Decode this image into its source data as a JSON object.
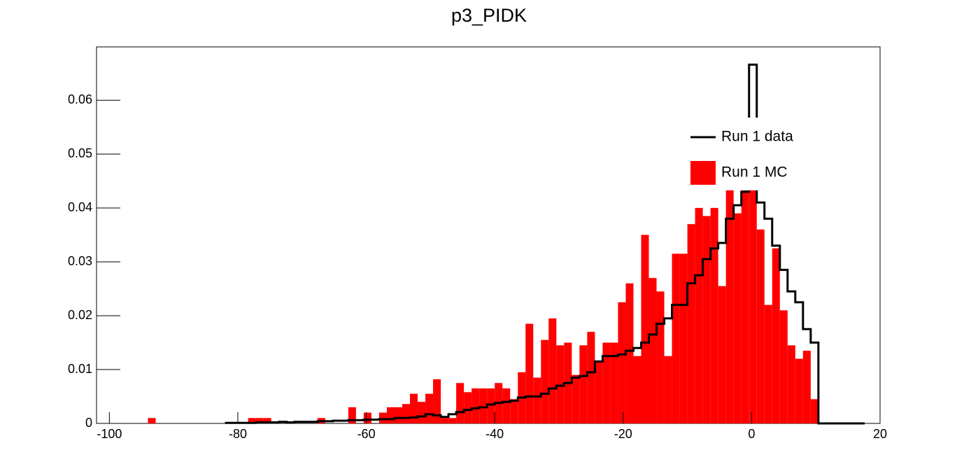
{
  "chart_data": {
    "type": "histogram",
    "title": "p3_PIDK",
    "bins": [
      -100,
      -98.8,
      -97.6,
      -96.4,
      -95.2,
      -94,
      -92.8,
      -91.6,
      -90.4,
      -89.2,
      -88,
      -86.8,
      -85.6,
      -84.4,
      -83.2,
      -82,
      -80.8,
      -79.6,
      -78.4,
      -77.2,
      -76,
      -74.8,
      -73.6,
      -72.4,
      -71.2,
      -70,
      -68.8,
      -67.6,
      -66.4,
      -65.2,
      -64,
      -62.8,
      -61.6,
      -60.4,
      -59.2,
      -58,
      -56.8,
      -55.6,
      -54.4,
      -53.2,
      -52,
      -50.8,
      -49.6,
      -48.4,
      -47.2,
      -46,
      -44.8,
      -43.6,
      -42.4,
      -41.2,
      -40,
      -38.8,
      -37.6,
      -36.4,
      -35.2,
      -34,
      -32.8,
      -31.6,
      -30.4,
      -29.2,
      -28,
      -26.8,
      -25.6,
      -24.4,
      -23.2,
      -22,
      -20.8,
      -19.6,
      -18.4,
      -17.2,
      -16,
      -14.8,
      -13.6,
      -12.4,
      -11.2,
      -10,
      -8.8,
      -7.6,
      -6.4,
      -5.2,
      -4,
      -2.8,
      -1.6,
      -0.4,
      0.8,
      2,
      3.2,
      4.4,
      5.6,
      6.8,
      8,
      9.2,
      10.4,
      11.6,
      12.8,
      14,
      15.2,
      16.4,
      17.6,
      18.8,
      20
    ],
    "series": [
      {
        "name": "Run 1 data",
        "color": "#000000",
        "style": "line",
        "values": [
          null,
          null,
          null,
          null,
          null,
          null,
          null,
          null,
          null,
          null,
          null,
          null,
          null,
          null,
          null,
          0.0001,
          0.0001,
          0.0001,
          0.0001,
          0.0002,
          0.0002,
          0.0002,
          0.0003,
          0.0002,
          0.0003,
          0.0003,
          0.0003,
          0.0004,
          0.0004,
          0.0005,
          0.0005,
          0.0006,
          0.0006,
          0.0007,
          0.0007,
          0.0008,
          0.0008,
          0.001,
          0.001,
          0.0011,
          0.0013,
          0.0017,
          0.0015,
          0.0012,
          0.0017,
          0.0021,
          0.0025,
          0.0028,
          0.003,
          0.0035,
          0.0038,
          0.004,
          0.0042,
          0.0048,
          0.005,
          0.005,
          0.0055,
          0.0065,
          0.007,
          0.0075,
          0.0085,
          0.0088,
          0.0095,
          0.0115,
          0.0125,
          0.0125,
          0.0128,
          0.0135,
          0.014,
          0.015,
          0.0165,
          0.0185,
          0.0195,
          0.022,
          0.022,
          0.026,
          0.0275,
          0.0305,
          0.0325,
          0.0335,
          0.038,
          0.0405,
          0.043,
          0.0666,
          0.041,
          0.038,
          0.033,
          0.0285,
          0.0245,
          0.0225,
          0.0175,
          0.015,
          0,
          0,
          0,
          0,
          0,
          0,
          null,
          null
        ]
      },
      {
        "name": "Run 1 MC",
        "color": "#ff0000",
        "style": "fill",
        "values": [
          0,
          0,
          0,
          0,
          0,
          0.001,
          0,
          0,
          0,
          0,
          0,
          0,
          0,
          0,
          0,
          0,
          0,
          0,
          0.001,
          0.001,
          0.001,
          0,
          0,
          0,
          0,
          0,
          0,
          0.001,
          0,
          0,
          0,
          0.003,
          0,
          0.002,
          0,
          0.002,
          0.003,
          0.003,
          0.0036,
          0.0055,
          0.004,
          0.0055,
          0.0082,
          0.001,
          0.001,
          0.0075,
          0.0058,
          0.0065,
          0.0065,
          0.0065,
          0.0075,
          0.0065,
          0.0045,
          0.0095,
          0.0185,
          0.0085,
          0.0155,
          0.0195,
          0.0145,
          0.015,
          0.009,
          0.0145,
          0.017,
          0.0115,
          0.015,
          0.015,
          0.0225,
          0.026,
          0.0125,
          0.035,
          0.027,
          0.0245,
          0.0125,
          0.0315,
          0.0315,
          0.037,
          0.04,
          0.0385,
          0.04,
          0.0255,
          0.0435,
          0.039,
          0.0435,
          0.0435,
          0.036,
          0.022,
          0.0325,
          0.021,
          0.0145,
          0.012,
          0.0135,
          0.0045,
          0,
          0,
          0,
          0,
          0,
          0,
          0,
          0
        ]
      }
    ],
    "xlim": [
      -102,
      20
    ],
    "xticks": [
      -100,
      -80,
      -60,
      -40,
      -20,
      0,
      20
    ],
    "ylim": [
      0,
      0.0699
    ],
    "yticks": [
      0,
      0.01,
      0.02,
      0.03,
      0.04,
      0.05,
      0.06
    ],
    "grid": false,
    "legend": "upper right"
  }
}
